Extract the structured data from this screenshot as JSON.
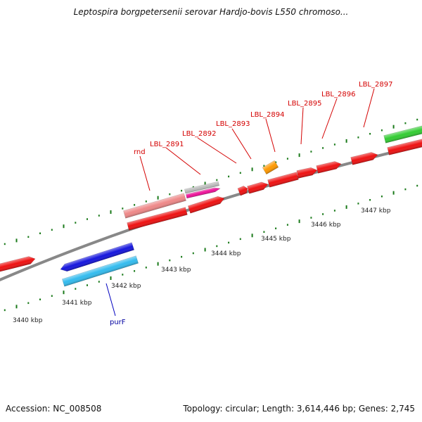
{
  "title": "Leptospira borgpetersenii serovar Hardjo-bovis L550 chromoso...",
  "footer": {
    "accession": "Accession: NC_008508",
    "summary": "Topology: circular; Length: 3,614,446 bp; Genes: 2,745"
  },
  "colors": {
    "backbone": "#888888",
    "ticks": "#1a7a1a",
    "label_line_red": "#d40000",
    "label_line_blue": "#0000c0"
  },
  "scale_labels": [
    "3440 kbp",
    "3441 kbp",
    "3442 kbp",
    "3443 kbp",
    "3444 kbp",
    "3445 kbp",
    "3446 kbp",
    "3447 kbp"
  ],
  "genes": [
    {
      "id": "g-left-red",
      "color": "#ee1111"
    },
    {
      "id": "g-purF-a",
      "color": "#1515dd"
    },
    {
      "id": "g-purF-b",
      "color": "#33bbee"
    },
    {
      "id": "g-rnd",
      "color": "#ee8888"
    },
    {
      "id": "g-rnd-b",
      "color": "#ee1111"
    },
    {
      "id": "g-2891-a",
      "color": "#bbbbbb"
    },
    {
      "id": "g-2891-b",
      "color": "#ee1199"
    },
    {
      "id": "g-2892",
      "color": "#ee1111"
    },
    {
      "id": "g-2893",
      "color": "#ee1111"
    },
    {
      "id": "g-2893-b",
      "color": "#ee1111"
    },
    {
      "id": "g-2894",
      "color": "#ff9900"
    },
    {
      "id": "g-2894-b",
      "color": "#ee1111"
    },
    {
      "id": "g-2895",
      "color": "#ee1111"
    },
    {
      "id": "g-2896",
      "color": "#ee1111"
    },
    {
      "id": "g-2897",
      "color": "#ee1111"
    },
    {
      "id": "g-2897-green",
      "color": "#33cc33"
    },
    {
      "id": "g-2897-b",
      "color": "#ee1111"
    }
  ],
  "gene_labels": [
    {
      "text": "rnd"
    },
    {
      "text": "LBL_2891"
    },
    {
      "text": "LBL_2892"
    },
    {
      "text": "LBL_2893"
    },
    {
      "text": "LBL_2894"
    },
    {
      "text": "LBL_2895"
    },
    {
      "text": "LBL_2896"
    },
    {
      "text": "LBL_2897"
    },
    {
      "text": "purF"
    }
  ]
}
